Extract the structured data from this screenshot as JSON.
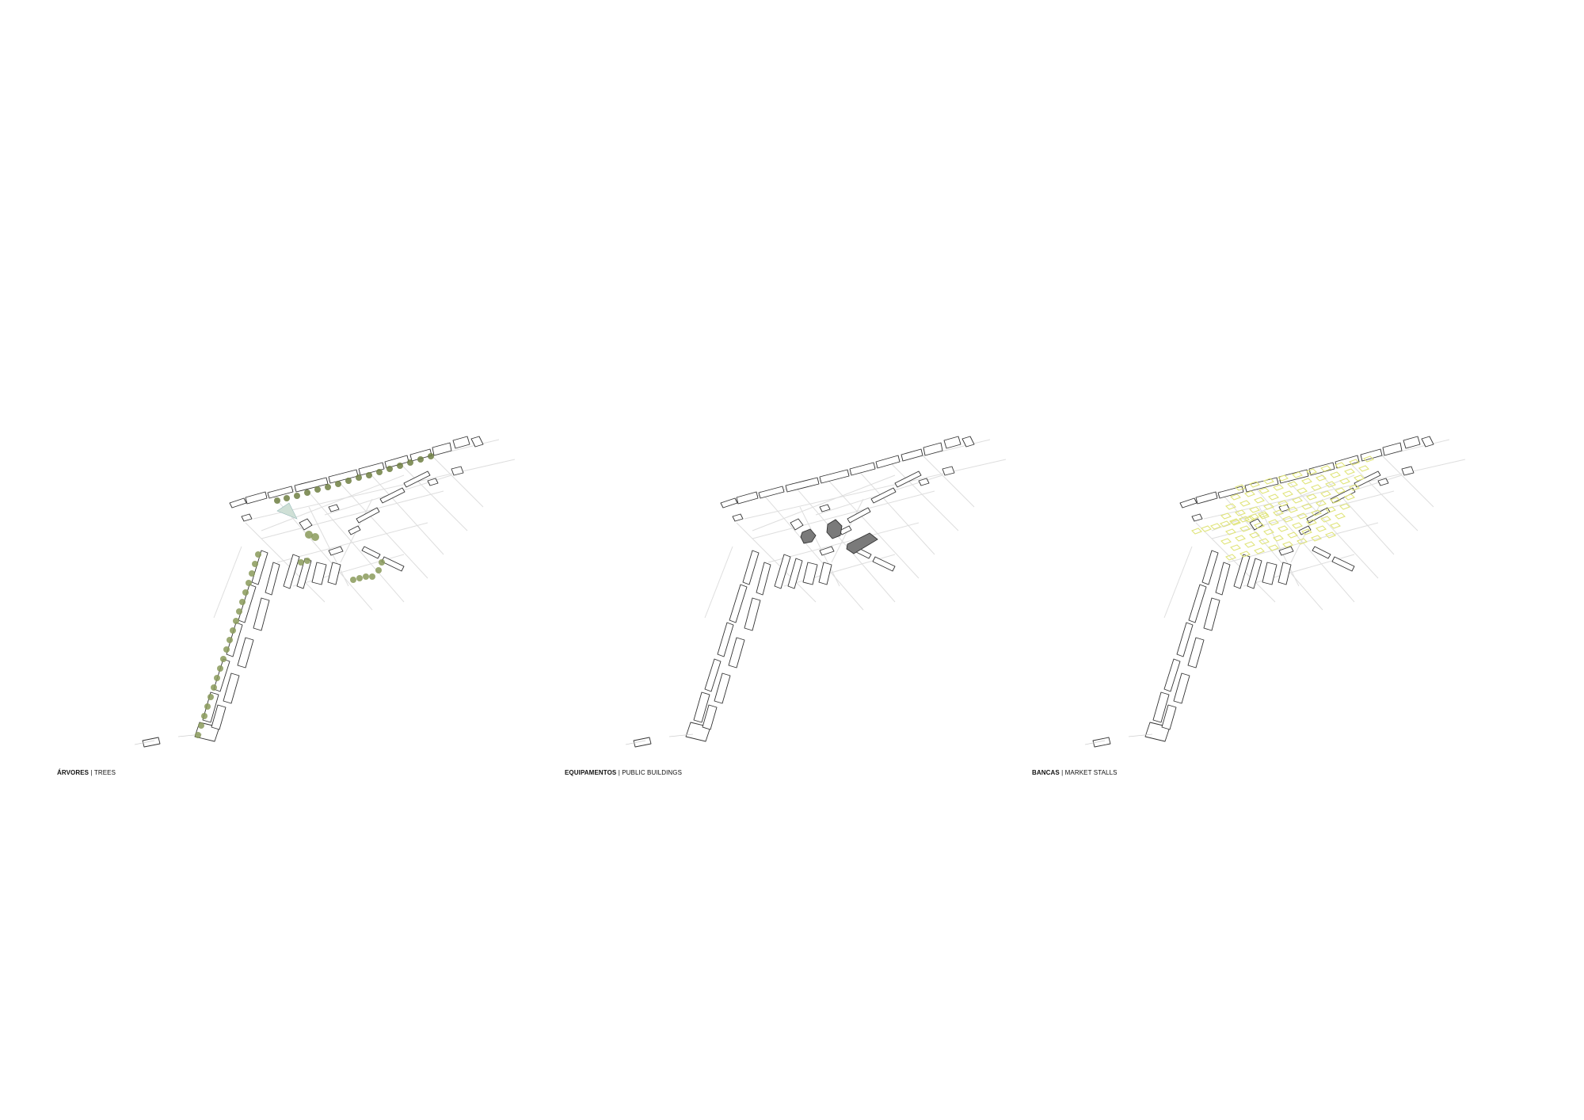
{
  "panels": [
    {
      "id": "trees",
      "title": "ÁRVORES",
      "subtitle": "TREES",
      "highlight": "trees",
      "color": "#8a9a5b"
    },
    {
      "id": "public-buildings",
      "title": "EQUIPAMENTOS",
      "subtitle": "PUBLIC BUILDINGS",
      "highlight": "public-buildings",
      "color": "#7a7a7a"
    },
    {
      "id": "market-stalls",
      "title": "BANCAS",
      "subtitle": "MARKET STALLS",
      "highlight": "market-stalls",
      "color": "#e8ec9a"
    }
  ],
  "separator": "|"
}
